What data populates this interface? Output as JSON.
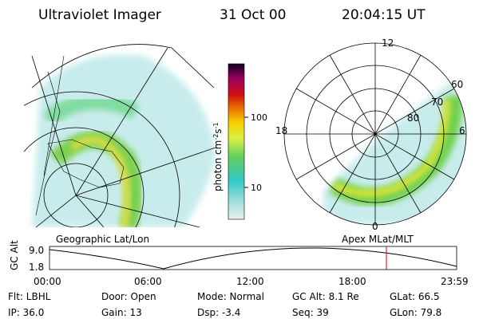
{
  "header": {
    "title": "Ultraviolet Imager",
    "date": "31 Oct 00",
    "time": "20:04:15 UT"
  },
  "colorbar": {
    "label": [
      "photon cm",
      "-2",
      "s",
      "-1"
    ],
    "ticks": [
      "100",
      "10"
    ]
  },
  "polar": {
    "mlt": [
      "12",
      "18",
      "6",
      "0"
    ],
    "mlat": [
      "60",
      "70",
      "80"
    ]
  },
  "panels": {
    "left": "Geographic Lat/Lon",
    "right": "Apex MLat/MLT"
  },
  "altitude": {
    "axis_label": "GC Alt",
    "yticks": [
      "9.0",
      "1.8"
    ],
    "xticks": [
      "00:00",
      "06:00",
      "12:00",
      "18:00",
      "23:59"
    ]
  },
  "status": {
    "rows": [
      [
        "Flt: LBHL",
        "Door: Open",
        "Mode: Normal",
        "GC Alt: 8.1 Re",
        "GLat: 66.5"
      ],
      [
        "IP: 36.0",
        "Gain: 13",
        "Dsp: -3.4",
        "Seq: 39",
        "GLon: 79.8"
      ]
    ]
  }
}
